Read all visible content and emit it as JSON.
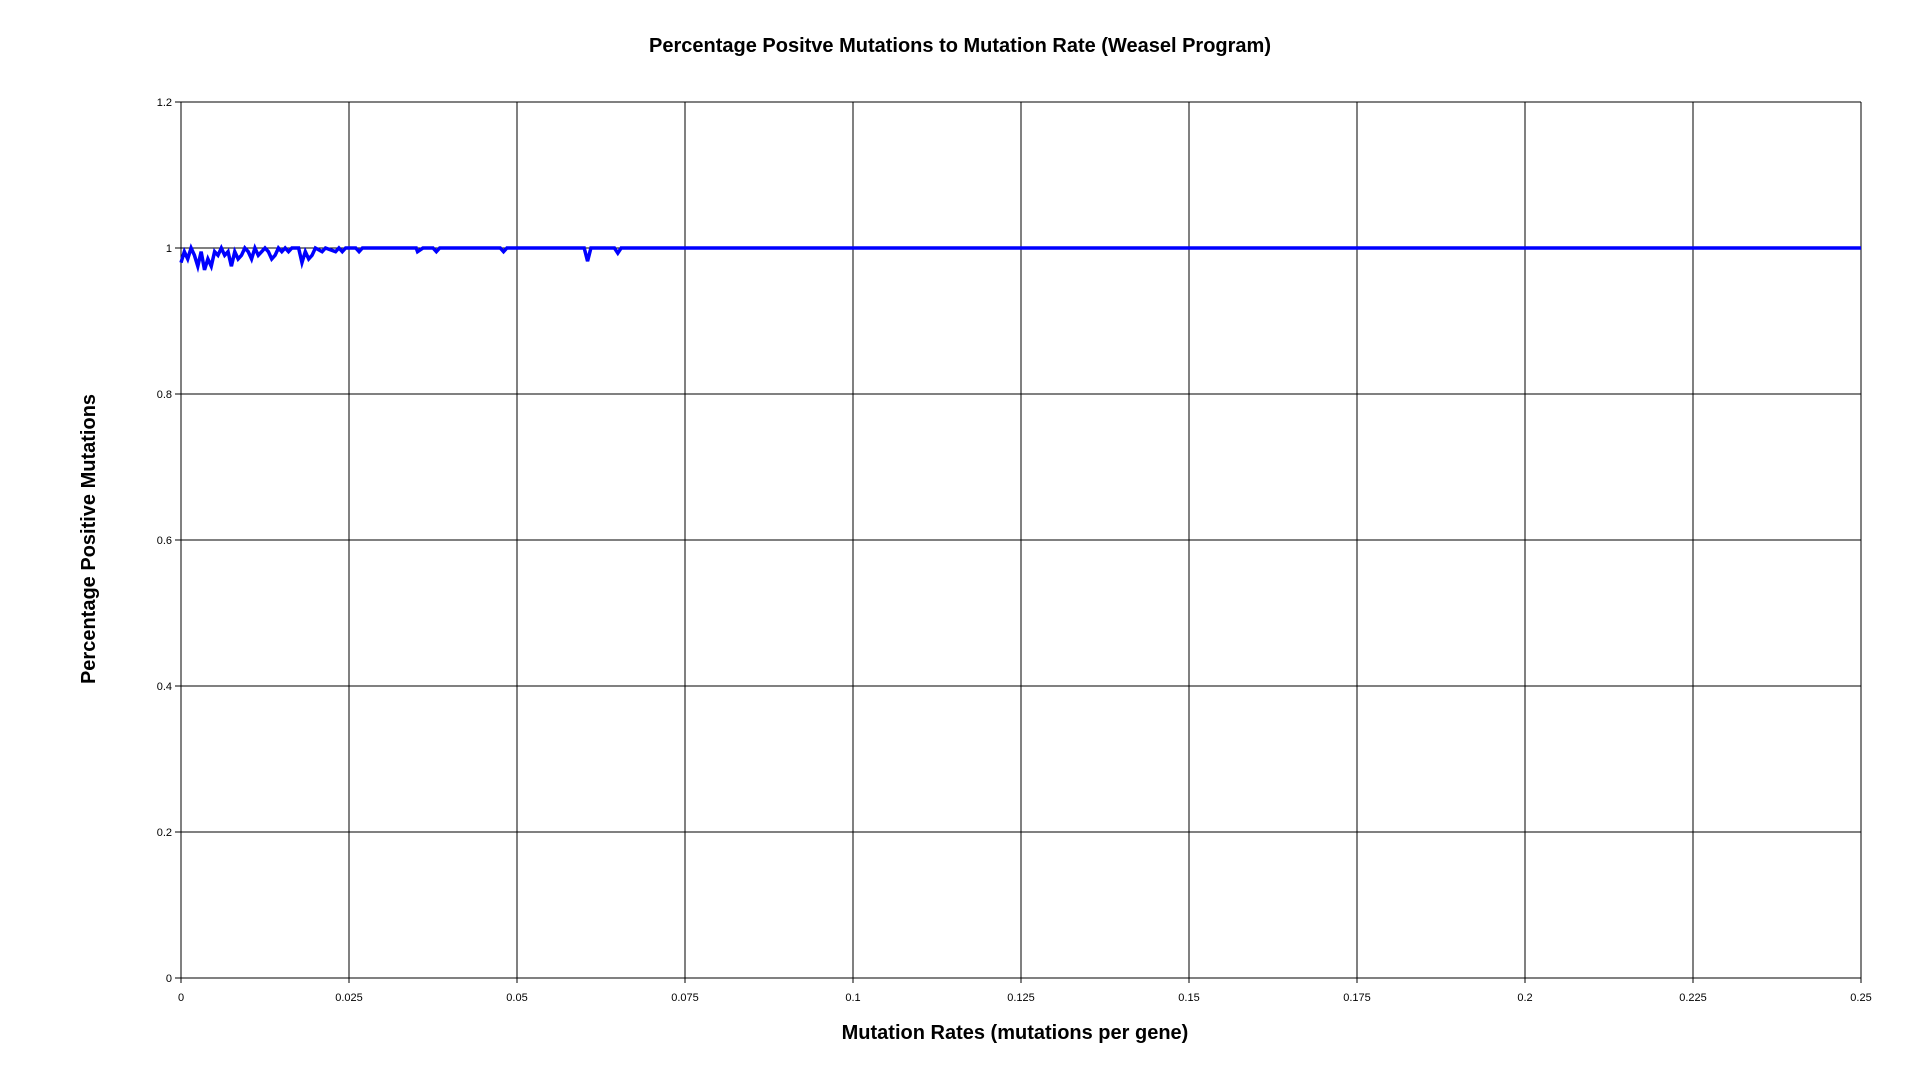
{
  "chart_data": {
    "type": "line",
    "title": "Percentage Positve Mutations to Mutation Rate (Weasel Program)",
    "xlabel": "Mutation Rates (mutations per gene)",
    "ylabel": "Percentage Positive Mutations",
    "xlim": [
      0,
      0.25
    ],
    "ylim": [
      0,
      1.2
    ],
    "xticks": [
      0,
      0.025,
      0.05,
      0.075,
      0.1,
      0.125,
      0.15,
      0.175,
      0.2,
      0.225,
      0.25
    ],
    "xtick_labels": [
      "0",
      "0.025",
      "0.05",
      "0.075",
      "0.1",
      "0.125",
      "0.15",
      "0.175",
      "0.2",
      "0.225",
      "0.25"
    ],
    "yticks": [
      0,
      0.2,
      0.4,
      0.6,
      0.8,
      1,
      1.2
    ],
    "ytick_labels": [
      "0",
      "0.2",
      "0.4",
      "0.6",
      "0.8",
      "1",
      "1.2"
    ],
    "grid": true,
    "series": [
      {
        "name": "",
        "color": "#0000ff",
        "points": [
          [
            0,
            0.98
          ],
          [
            0.0005,
            0.995
          ],
          [
            0.001,
            0.985
          ],
          [
            0.0015,
            1
          ],
          [
            0.002,
            0.99
          ],
          [
            0.0025,
            0.975
          ],
          [
            0.003,
            0.995
          ],
          [
            0.0035,
            0.97
          ],
          [
            0.004,
            0.985
          ],
          [
            0.0045,
            0.975
          ],
          [
            0.005,
            0.995
          ],
          [
            0.0055,
            0.99
          ],
          [
            0.006,
            1
          ],
          [
            0.0065,
            0.99
          ],
          [
            0.007,
            0.995
          ],
          [
            0.0075,
            0.975
          ],
          [
            0.008,
            0.995
          ],
          [
            0.0085,
            0.985
          ],
          [
            0.009,
            0.99
          ],
          [
            0.0095,
            1
          ],
          [
            0.01,
            0.995
          ],
          [
            0.0105,
            0.985
          ],
          [
            0.011,
            1
          ],
          [
            0.0115,
            0.99
          ],
          [
            0.012,
            0.995
          ],
          [
            0.0125,
            1
          ],
          [
            0.013,
            0.995
          ],
          [
            0.0135,
            0.985
          ],
          [
            0.014,
            0.99
          ],
          [
            0.0145,
            1
          ],
          [
            0.015,
            0.995
          ],
          [
            0.0155,
            1
          ],
          [
            0.016,
            0.995
          ],
          [
            0.0165,
            1
          ],
          [
            0.0175,
            1
          ],
          [
            0.018,
            0.98
          ],
          [
            0.0185,
            0.995
          ],
          [
            0.019,
            0.985
          ],
          [
            0.0195,
            0.99
          ],
          [
            0.02,
            1
          ],
          [
            0.021,
            0.995
          ],
          [
            0.0215,
            1
          ],
          [
            0.023,
            0.995
          ],
          [
            0.0235,
            1
          ],
          [
            0.024,
            0.995
          ],
          [
            0.0245,
            1
          ],
          [
            0.026,
            1
          ],
          [
            0.0265,
            0.995
          ],
          [
            0.027,
            1
          ],
          [
            0.035,
            1
          ],
          [
            0.0352,
            0.995
          ],
          [
            0.036,
            1
          ],
          [
            0.0375,
            1
          ],
          [
            0.038,
            0.995
          ],
          [
            0.0385,
            1
          ],
          [
            0.04,
            1
          ],
          [
            0.0475,
            1
          ],
          [
            0.048,
            0.995
          ],
          [
            0.0485,
            1
          ],
          [
            0.06,
            1
          ],
          [
            0.0605,
            0.982
          ],
          [
            0.061,
            1
          ],
          [
            0.0645,
            1
          ],
          [
            0.065,
            0.993
          ],
          [
            0.0655,
            1
          ],
          [
            0.1,
            1
          ],
          [
            0.15,
            1
          ],
          [
            0.2,
            1
          ],
          [
            0.25,
            1
          ]
        ]
      }
    ]
  }
}
